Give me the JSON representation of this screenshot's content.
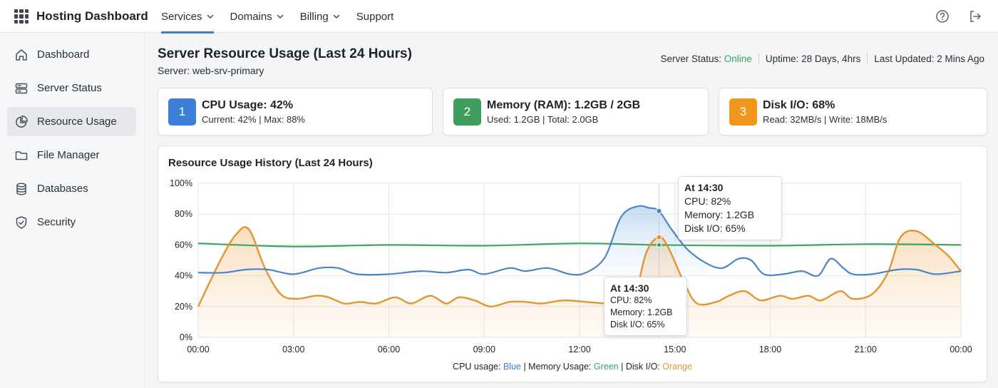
{
  "app": {
    "title": "Hosting Dashboard"
  },
  "nav": [
    {
      "label": "Services",
      "dropdown": true,
      "active": true
    },
    {
      "label": "Domains",
      "dropdown": true
    },
    {
      "label": "Billing",
      "dropdown": true
    },
    {
      "label": "Support",
      "dropdown": false
    }
  ],
  "top_icons": [
    "help-icon",
    "logout-icon"
  ],
  "sidebar": {
    "items": [
      {
        "label": "Dashboard",
        "icon": "home-icon"
      },
      {
        "label": "Server Status",
        "icon": "server-icon"
      },
      {
        "label": "Resource Usage",
        "icon": "pie-chart-icon",
        "active": true
      },
      {
        "label": "File Manager",
        "icon": "folder-icon"
      },
      {
        "label": "Databases",
        "icon": "database-icon"
      },
      {
        "label": "Security",
        "icon": "shield-icon"
      }
    ]
  },
  "page": {
    "title": "Server Resource Usage (Last 24 Hours)",
    "server": "Server: web-srv-primary"
  },
  "status": {
    "server_label": "Server Status:",
    "server_value": "Online",
    "uptime": "Uptime: 28 Days, 4hrs",
    "updated": "Last Updated: 2 Mins Ago"
  },
  "cards": [
    {
      "number": "1",
      "title": "CPU Usage: 42%",
      "detail": "Current: 42% | Max: 88%",
      "color": "#3b7fd8"
    },
    {
      "number": "2",
      "title": "Memory (RAM): 1.2GB / 2GB",
      "detail": "Used: 1.2GB | Total: 2.0GB",
      "color": "#3f9e5e"
    },
    {
      "number": "3",
      "title": "Disk I/O: 68%",
      "detail": "Read: 32MB/s | Write: 18MB/s",
      "color": "#f0961f"
    }
  ],
  "chart": {
    "title": "Resource Usage History (Last 24 Hours)",
    "legend": {
      "cpu_label": "CPU usage:",
      "cpu_color_name": "Blue",
      "mem_label": "Memory Usage:",
      "mem_color_name": "Green",
      "disk_label": "Disk I/O:",
      "disk_color_name": "Orange"
    },
    "tooltip_large": {
      "time": "At 14:30",
      "cpu": "CPU: 82%",
      "memory": "Memory: 1.2GB",
      "disk": "Disk I/O: 65%"
    },
    "tooltip_small": {
      "time": "At 14:30",
      "cpu": "CPU: 82%",
      "memory": "Memory: 1.2GB",
      "disk": "Disk I/O: 65%"
    }
  },
  "chart_data": {
    "type": "area",
    "title": "Resource Usage History (Last 24 Hours)",
    "xlabel": "",
    "ylabel": "",
    "x_ticks": [
      "00:00",
      "03:00",
      "06:00",
      "09:00",
      "12:00",
      "15:00",
      "18:00",
      "21:00",
      "00:00"
    ],
    "y_ticks": [
      "0%",
      "20%",
      "40%",
      "60%",
      "80%",
      "100%"
    ],
    "ylim": [
      0,
      100
    ],
    "grid": true,
    "legend_position": "bottom",
    "highlight": {
      "hour": 14.5,
      "label": "At 14:30",
      "cpu": 82,
      "memory_gb": 1.2,
      "disk": 65
    },
    "series": [
      {
        "name": "CPU usage",
        "color": "#4a86c5",
        "fill": false,
        "points": [
          [
            0,
            42
          ],
          [
            0.8,
            42
          ],
          [
            1.5,
            44
          ],
          [
            2.2,
            44
          ],
          [
            3,
            41
          ],
          [
            3.8,
            45
          ],
          [
            4.4,
            45
          ],
          [
            5,
            41
          ],
          [
            6,
            41
          ],
          [
            7,
            43
          ],
          [
            7.8,
            42
          ],
          [
            8.5,
            44
          ],
          [
            9,
            41
          ],
          [
            9.8,
            45
          ],
          [
            10.3,
            43
          ],
          [
            11,
            45
          ],
          [
            11.7,
            41
          ],
          [
            12.2,
            42
          ],
          [
            12.8,
            52
          ],
          [
            13.3,
            78
          ],
          [
            13.8,
            85
          ],
          [
            14.2,
            84
          ],
          [
            14.5,
            82
          ],
          [
            14.9,
            70
          ],
          [
            15.4,
            57
          ],
          [
            16,
            48
          ],
          [
            16.5,
            45
          ],
          [
            17,
            51
          ],
          [
            17.4,
            50
          ],
          [
            17.8,
            41
          ],
          [
            18.4,
            41
          ],
          [
            19,
            43
          ],
          [
            19.5,
            40
          ],
          [
            19.9,
            51
          ],
          [
            20.3,
            45
          ],
          [
            20.6,
            41
          ],
          [
            21.2,
            41
          ],
          [
            22,
            44
          ],
          [
            22.6,
            44
          ],
          [
            23.2,
            41
          ],
          [
            24,
            43
          ]
        ]
      },
      {
        "name": "Memory Usage",
        "color": "#3fa364",
        "fill": false,
        "points": [
          [
            0,
            61
          ],
          [
            3,
            59
          ],
          [
            6,
            60
          ],
          [
            9,
            59.5
          ],
          [
            12,
            61
          ],
          [
            14.5,
            60
          ],
          [
            18,
            59.5
          ],
          [
            21,
            60.5
          ],
          [
            24,
            60
          ]
        ]
      },
      {
        "name": "Disk I/O",
        "color": "#e3962f",
        "fill": true,
        "points": [
          [
            0,
            20
          ],
          [
            0.7,
            50
          ],
          [
            1.2,
            67
          ],
          [
            1.6,
            70
          ],
          [
            2.1,
            45
          ],
          [
            2.6,
            28
          ],
          [
            3.1,
            25
          ],
          [
            3.7,
            27
          ],
          [
            4.1,
            26
          ],
          [
            4.6,
            22
          ],
          [
            5.1,
            23
          ],
          [
            5.6,
            22
          ],
          [
            6.2,
            26
          ],
          [
            6.7,
            22
          ],
          [
            7.3,
            27
          ],
          [
            7.8,
            22
          ],
          [
            8.2,
            26
          ],
          [
            8.7,
            24
          ],
          [
            9.2,
            20
          ],
          [
            9.8,
            23
          ],
          [
            10.3,
            23
          ],
          [
            10.8,
            22
          ],
          [
            11.5,
            24
          ],
          [
            12.2,
            23
          ],
          [
            12.8,
            22
          ],
          [
            13.3,
            21
          ],
          [
            13.7,
            24
          ],
          [
            14.1,
            55
          ],
          [
            14.5,
            65
          ],
          [
            14.8,
            58
          ],
          [
            15.3,
            35
          ],
          [
            15.7,
            22
          ],
          [
            16.3,
            23
          ],
          [
            16.7,
            27
          ],
          [
            17.2,
            30
          ],
          [
            17.7,
            24
          ],
          [
            18.3,
            27
          ],
          [
            18.7,
            25
          ],
          [
            19.2,
            27
          ],
          [
            19.6,
            24
          ],
          [
            20.2,
            30
          ],
          [
            20.6,
            25
          ],
          [
            21.2,
            28
          ],
          [
            21.7,
            42
          ],
          [
            22.1,
            65
          ],
          [
            22.6,
            69
          ],
          [
            23.2,
            60
          ],
          [
            23.6,
            53
          ],
          [
            24,
            43
          ]
        ]
      }
    ]
  }
}
